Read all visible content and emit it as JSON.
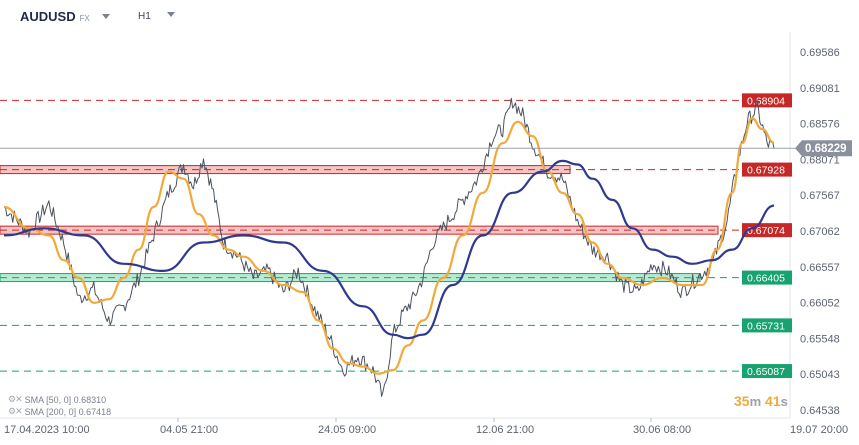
{
  "toolbar": {
    "symbol": "AUDUSD",
    "market": "FX",
    "timeframe": "H1"
  },
  "price_axis": {
    "ticks": [
      "0.69586",
      "0.69081",
      "0.68576",
      "0.68071",
      "0.67567",
      "0.67062",
      "0.66557",
      "0.66052",
      "0.65548",
      "0.65043",
      "0.64538"
    ],
    "current_price": "0.68229"
  },
  "time_axis": {
    "labels": [
      "17.04.2023  10:00",
      "04.05  21:00",
      "24.05  09:00",
      "12.06  21:00",
      "30.06  08:00",
      "19.07  20:00"
    ]
  },
  "levels": [
    {
      "price": 0.68904,
      "label": "0.68904",
      "color": "#c62828",
      "style": "dashed",
      "zone": false
    },
    {
      "price": 0.67928,
      "label": "0.67928",
      "color": "#c62828",
      "style": "dashed",
      "zone": true
    },
    {
      "price": 0.67074,
      "label": "0.67074",
      "color": "#c62828",
      "style": "dashed",
      "zone": true
    },
    {
      "price": 0.66405,
      "label": "0.66405",
      "color": "#16a36f",
      "style": "dashed",
      "zone": true
    },
    {
      "price": 0.65731,
      "label": "0.65731",
      "color": "#16a36f",
      "style": "dashed",
      "zone": false
    },
    {
      "price": 0.65087,
      "label": "0.65087",
      "color": "#16a36f",
      "style": "dashed",
      "zone": false
    }
  ],
  "legend": [
    {
      "text": "SMA [50, 0]  0.68310"
    },
    {
      "text": "SMA [200, 0]  0.67418"
    }
  ],
  "timer": {
    "minutes": "35",
    "m_unit": "m",
    "seconds": "41",
    "s_unit": "s"
  },
  "colors": {
    "price_line": "#4a5260",
    "sma_fast": "#f2a93b",
    "sma_slow": "#2f3a8f",
    "resistance": "#c62828",
    "support": "#16a36f",
    "current_price_tag": "#8a919c"
  },
  "icons": {
    "settings": "gear-icon",
    "remove": "close-icon",
    "dropdown": "chevron-down-icon"
  },
  "chart_data": {
    "type": "line",
    "title": "AUDUSD",
    "xlabel": "",
    "ylabel": "",
    "ylim": [
      0.64538,
      0.69586
    ],
    "series": [
      {
        "name": "",
        "x": [
          0,
          25,
          45,
          60,
          75,
          90,
          105,
          120,
          135,
          150,
          165,
          180,
          190,
          200,
          210,
          220,
          235,
          250,
          265,
          280,
          295,
          310,
          325,
          340,
          355,
          370,
          380,
          390,
          400,
          410,
          420,
          430,
          445,
          460,
          475,
          490,
          500,
          510,
          520,
          530,
          545,
          560,
          575,
          590,
          605,
          620,
          635,
          650,
          665,
          680,
          695,
          710,
          725,
          735,
          745,
          755,
          765,
          772
        ],
        "values": [
          0.674,
          0.6705,
          0.6745,
          0.669,
          0.661,
          0.6625,
          0.658,
          0.66,
          0.664,
          0.67,
          0.676,
          0.68,
          0.677,
          0.681,
          0.676,
          0.669,
          0.667,
          0.664,
          0.665,
          0.662,
          0.665,
          0.66,
          0.656,
          0.651,
          0.653,
          0.651,
          0.647,
          0.656,
          0.659,
          0.661,
          0.664,
          0.669,
          0.672,
          0.675,
          0.678,
          0.684,
          0.685,
          0.689,
          0.687,
          0.683,
          0.679,
          0.678,
          0.672,
          0.668,
          0.667,
          0.663,
          0.662,
          0.666,
          0.665,
          0.662,
          0.664,
          0.666,
          0.672,
          0.68,
          0.686,
          0.688,
          0.683,
          0.6823
        ]
      },
      {
        "name": "SMA [50, 0]",
        "x": [
          0,
          25,
          45,
          60,
          75,
          90,
          105,
          120,
          135,
          150,
          165,
          180,
          195,
          210,
          225,
          240,
          260,
          280,
          300,
          315,
          330,
          345,
          360,
          375,
          390,
          405,
          420,
          440,
          460,
          480,
          500,
          515,
          530,
          545,
          560,
          575,
          590,
          605,
          620,
          640,
          660,
          680,
          700,
          715,
          730,
          740,
          750,
          760,
          772
        ],
        "values": [
          0.674,
          0.671,
          0.67,
          0.6665,
          0.664,
          0.6605,
          0.661,
          0.664,
          0.668,
          0.674,
          0.679,
          0.678,
          0.673,
          0.67,
          0.668,
          0.667,
          0.665,
          0.663,
          0.662,
          0.658,
          0.654,
          0.652,
          0.6515,
          0.6505,
          0.651,
          0.6545,
          0.658,
          0.664,
          0.67,
          0.676,
          0.683,
          0.686,
          0.684,
          0.679,
          0.676,
          0.673,
          0.669,
          0.666,
          0.664,
          0.663,
          0.664,
          0.663,
          0.663,
          0.668,
          0.676,
          0.683,
          0.6865,
          0.685,
          0.6831
        ]
      },
      {
        "name": "SMA [200, 0]",
        "x": [
          0,
          40,
          80,
          120,
          160,
          200,
          240,
          280,
          320,
          360,
          390,
          405,
          420,
          450,
          480,
          510,
          540,
          560,
          575,
          590,
          610,
          630,
          650,
          670,
          690,
          710,
          730,
          750,
          772
        ],
        "values": [
          0.67,
          0.671,
          0.67,
          0.666,
          0.665,
          0.669,
          0.67,
          0.669,
          0.665,
          0.66,
          0.656,
          0.6555,
          0.656,
          0.663,
          0.67,
          0.676,
          0.679,
          0.6805,
          0.68,
          0.678,
          0.675,
          0.671,
          0.668,
          0.667,
          0.666,
          0.6665,
          0.668,
          0.671,
          0.6742
        ]
      }
    ],
    "x_ticks": [
      "17.04.2023  10:00",
      "04.05  21:00",
      "24.05  09:00",
      "12.06  21:00",
      "30.06  08:00",
      "19.07  20:00"
    ],
    "y_ticks": [
      0.69586,
      0.69081,
      0.68576,
      0.68071,
      0.67567,
      0.67062,
      0.66557,
      0.66052,
      0.65548,
      0.65043,
      0.64538
    ],
    "grid": false,
    "legend": "bottom-left"
  }
}
